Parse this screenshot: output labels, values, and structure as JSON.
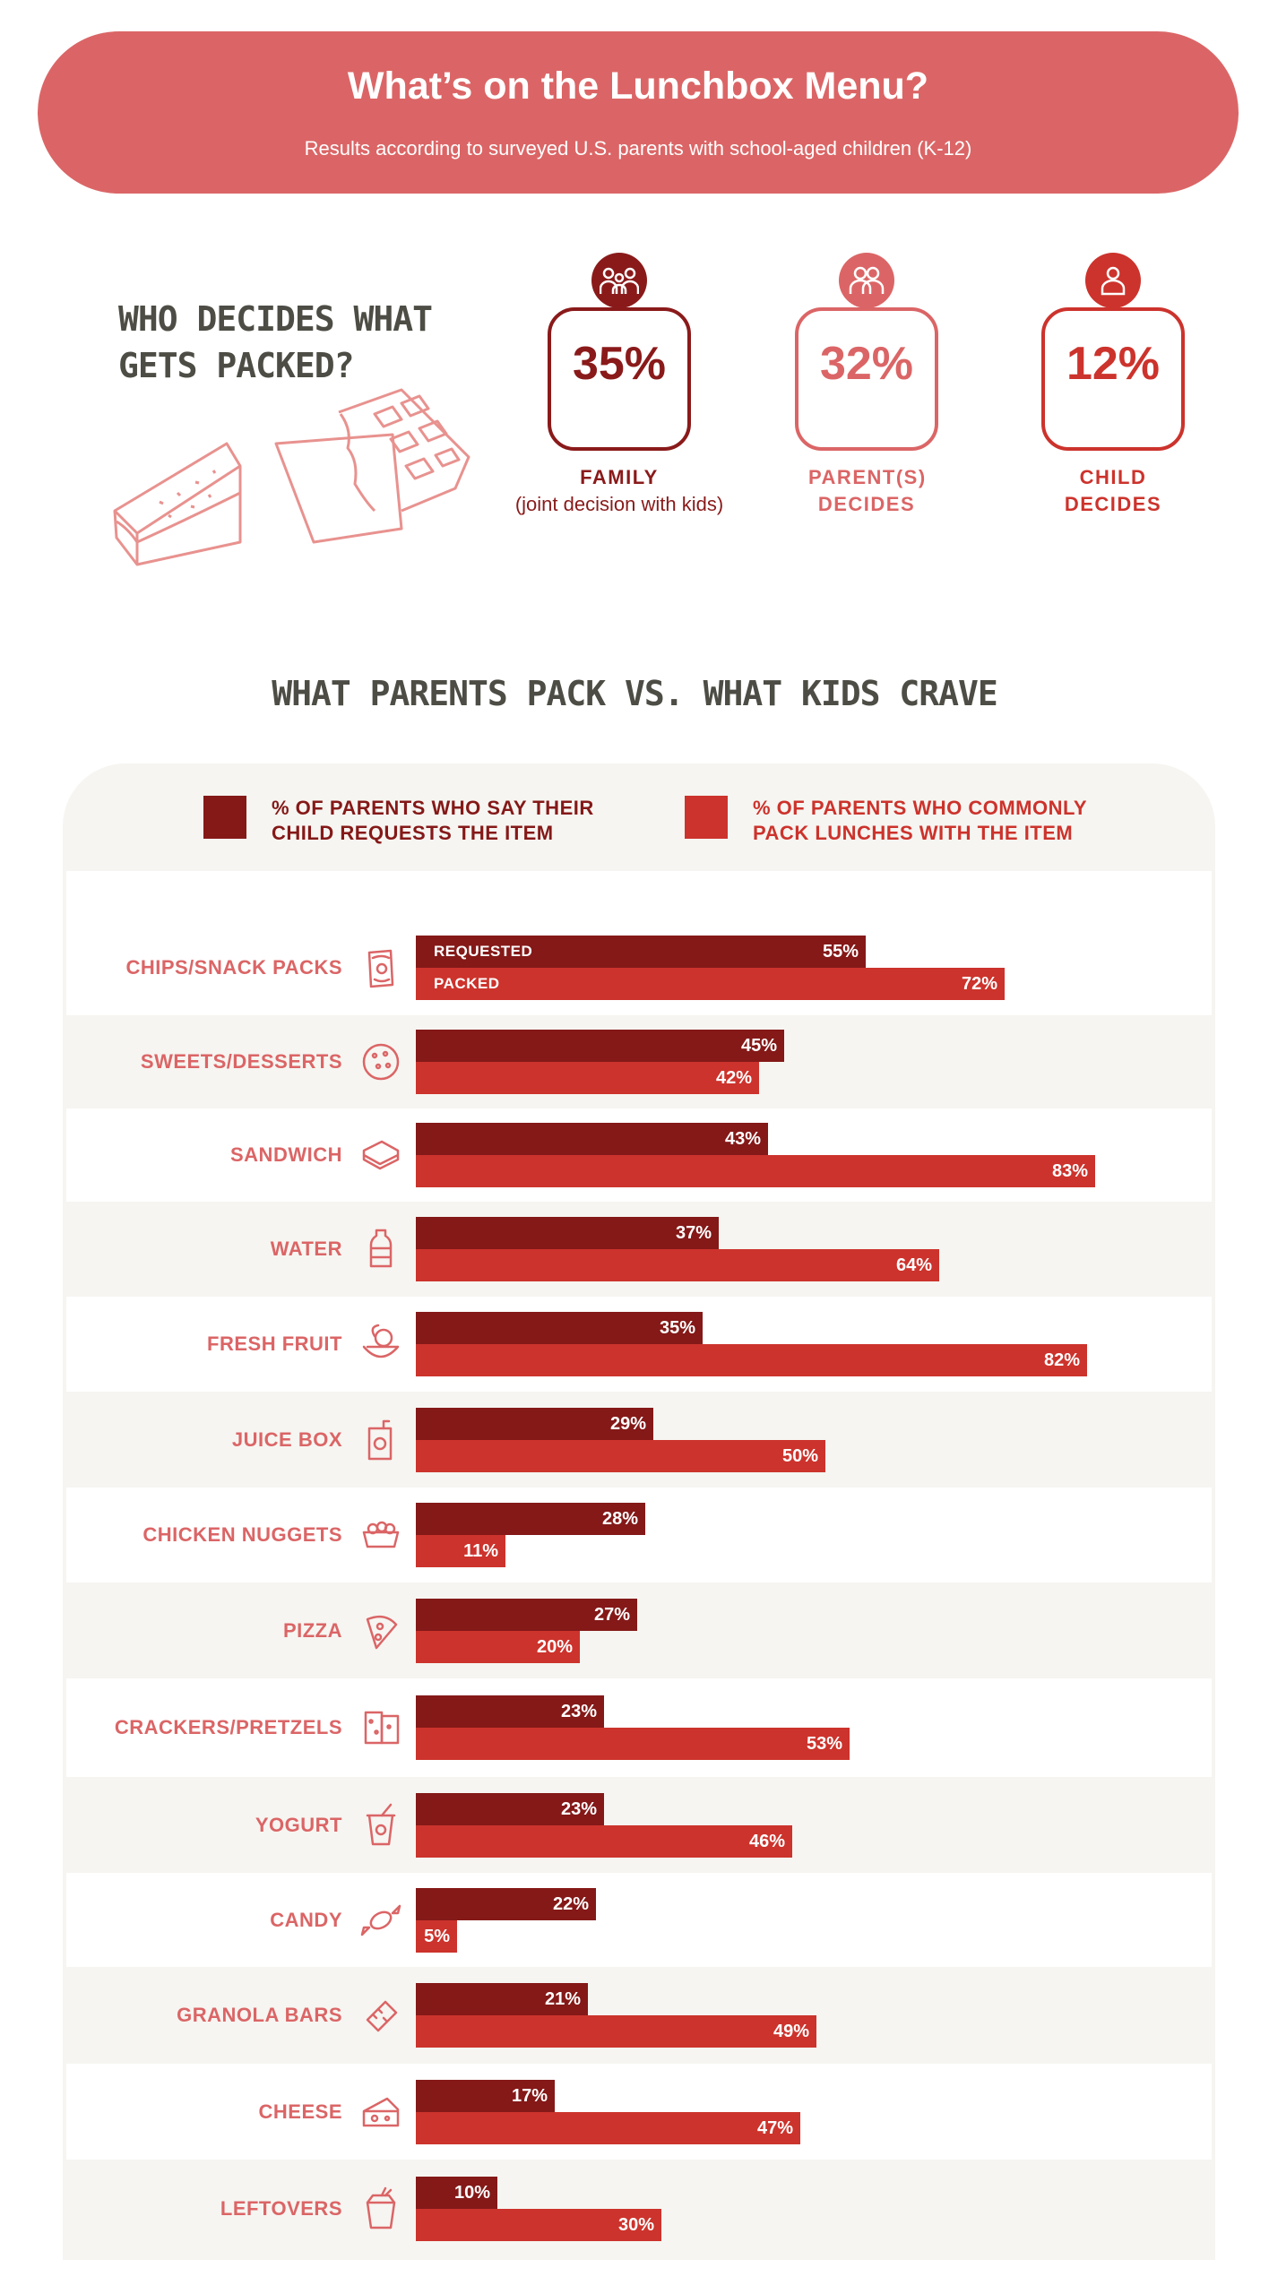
{
  "header": {
    "title": "What’s on the Lunchbox Menu?",
    "subtitle": "Results according to surveyed U.S. parents with school-aged children (K-12)"
  },
  "decides": {
    "title": "WHO DECIDES WHAT GETS PACKED?",
    "stats": [
      {
        "value": "35%",
        "label": "FAMILY",
        "sub": "(joint decision with kids)",
        "color": "#8a1a1a",
        "icon": "family-icon"
      },
      {
        "value": "32%",
        "label": "PARENT(S) DECIDES",
        "sub": "",
        "color": "#db6566",
        "icon": "parents-icon"
      },
      {
        "value": "12%",
        "label": "CHILD DECIDES",
        "sub": "",
        "color": "#cc332c",
        "icon": "child-icon"
      }
    ]
  },
  "chart_data": {
    "type": "bar",
    "title": "WHAT PARENTS PACK VS. WHAT KIDS CRAVE",
    "orientation": "horizontal",
    "categories": [
      "CHIPS/SNACK PACKS",
      "SWEETS/DESSERTS",
      "SANDWICH",
      "WATER",
      "FRESH FRUIT",
      "JUICE BOX",
      "CHICKEN NUGGETS",
      "PIZZA",
      "CRACKERS/PRETZELS",
      "YOGURT",
      "CANDY",
      "GRANOLA BARS",
      "CHEESE",
      "LEFTOVERS"
    ],
    "series": [
      {
        "name": "% OF PARENTS WHO SAY THEIR CHILD REQUESTS THE ITEM",
        "tag": "REQUESTED",
        "color": "#841918",
        "values": [
          55,
          45,
          43,
          37,
          35,
          29,
          28,
          27,
          23,
          23,
          22,
          21,
          17,
          10
        ]
      },
      {
        "name": "% OF PARENTS WHO COMMONLY PACK LUNCHES WITH THE ITEM",
        "tag": "PACKED",
        "color": "#cc332c",
        "values": [
          72,
          42,
          83,
          64,
          82,
          50,
          11,
          20,
          53,
          46,
          5,
          49,
          47,
          30
        ]
      }
    ],
    "xlim": [
      0,
      100
    ],
    "icons": [
      "chips-icon",
      "cookie-icon",
      "sandwich-icon",
      "water-bottle-icon",
      "fruit-icon",
      "juice-box-icon",
      "nuggets-icon",
      "pizza-icon",
      "crackers-icon",
      "yogurt-icon",
      "candy-icon",
      "granola-bar-icon",
      "cheese-icon",
      "takeout-box-icon"
    ]
  }
}
